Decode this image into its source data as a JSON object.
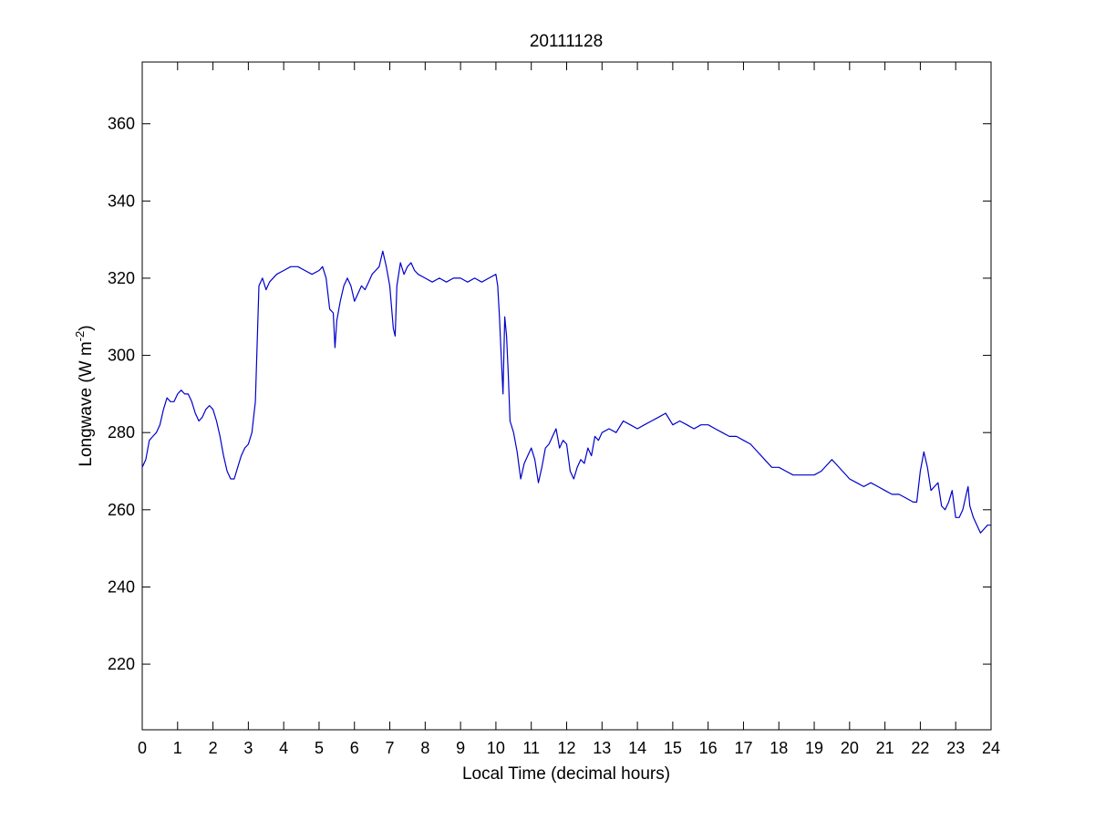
{
  "chart_data": {
    "type": "line",
    "title": "20111128",
    "xlabel": "Local Time (decimal hours)",
    "ylabel": {
      "text": "Longwave (W m",
      "superscript": "-2",
      "suffix": ")"
    },
    "xlim": [
      0,
      24
    ],
    "ylim": [
      203,
      376
    ],
    "xticks": [
      0,
      1,
      2,
      3,
      4,
      5,
      6,
      7,
      8,
      9,
      10,
      11,
      12,
      13,
      14,
      15,
      16,
      17,
      18,
      19,
      20,
      21,
      22,
      23,
      24
    ],
    "yticks": [
      220,
      240,
      260,
      280,
      300,
      320,
      340,
      360
    ],
    "grid": false,
    "line_color": "#0000cc",
    "series": [
      {
        "x": [
          0.0,
          0.1,
          0.2,
          0.3,
          0.4,
          0.5,
          0.6,
          0.7,
          0.8,
          0.9,
          1.0,
          1.1,
          1.2,
          1.3,
          1.4,
          1.5,
          1.6,
          1.7,
          1.8,
          1.9,
          2.0,
          2.1,
          2.2,
          2.3,
          2.4,
          2.5,
          2.6,
          2.7,
          2.8,
          2.9,
          3.0,
          3.1,
          3.2,
          3.3,
          3.4,
          3.5,
          3.6,
          3.8,
          4.0,
          4.2,
          4.4,
          4.6,
          4.8,
          5.0,
          5.1,
          5.2,
          5.3,
          5.4,
          5.45,
          5.5,
          5.6,
          5.7,
          5.8,
          5.9,
          6.0,
          6.1,
          6.2,
          6.3,
          6.4,
          6.5,
          6.6,
          6.7,
          6.8,
          6.9,
          7.0,
          7.1,
          7.15,
          7.2,
          7.3,
          7.4,
          7.5,
          7.6,
          7.7,
          7.8,
          8.0,
          8.2,
          8.4,
          8.6,
          8.8,
          9.0,
          9.2,
          9.4,
          9.6,
          9.8,
          10.0,
          10.05,
          10.1,
          10.15,
          10.2,
          10.25,
          10.3,
          10.35,
          10.4,
          10.5,
          10.6,
          10.7,
          10.8,
          10.9,
          11.0,
          11.1,
          11.2,
          11.3,
          11.4,
          11.5,
          11.6,
          11.7,
          11.8,
          11.9,
          12.0,
          12.1,
          12.2,
          12.3,
          12.4,
          12.5,
          12.6,
          12.7,
          12.8,
          12.9,
          13.0,
          13.2,
          13.4,
          13.6,
          13.8,
          14.0,
          14.2,
          14.4,
          14.6,
          14.8,
          15.0,
          15.2,
          15.4,
          15.6,
          15.8,
          16.0,
          16.2,
          16.4,
          16.6,
          16.8,
          17.0,
          17.2,
          17.4,
          17.6,
          17.8,
          18.0,
          18.2,
          18.4,
          18.6,
          18.8,
          19.0,
          19.2,
          19.4,
          19.5,
          19.6,
          19.8,
          20.0,
          20.2,
          20.4,
          20.6,
          20.8,
          21.0,
          21.2,
          21.4,
          21.6,
          21.8,
          21.9,
          22.0,
          22.1,
          22.2,
          22.3,
          22.4,
          22.5,
          22.6,
          22.7,
          22.8,
          22.9,
          23.0,
          23.1,
          23.2,
          23.3,
          23.35,
          23.4,
          23.5,
          23.6,
          23.7,
          23.8,
          23.9,
          24.0
        ],
        "y": [
          271,
          273,
          278,
          279,
          280,
          282,
          286,
          289,
          288,
          288,
          290,
          291,
          290,
          290,
          288,
          285,
          283,
          284,
          286,
          287,
          286,
          283,
          279,
          274,
          270,
          268,
          268,
          271,
          274,
          276,
          277,
          280,
          288,
          318,
          320,
          317,
          319,
          321,
          322,
          323,
          323,
          322,
          321,
          322,
          323,
          320,
          312,
          311,
          302,
          309,
          314,
          318,
          320,
          318,
          314,
          316,
          318,
          317,
          319,
          321,
          322,
          323,
          327,
          323,
          318,
          307,
          305,
          318,
          324,
          321,
          323,
          324,
          322,
          321,
          320,
          319,
          320,
          319,
          320,
          320,
          319,
          320,
          319,
          320,
          321,
          318,
          310,
          300,
          290,
          310,
          305,
          295,
          283,
          280,
          275,
          268,
          272,
          274,
          276,
          273,
          267,
          271,
          276,
          277,
          279,
          281,
          276,
          278,
          277,
          270,
          268,
          271,
          273,
          272,
          276,
          274,
          279,
          278,
          280,
          281,
          280,
          283,
          282,
          281,
          282,
          283,
          284,
          285,
          282,
          283,
          282,
          281,
          282,
          282,
          281,
          280,
          279,
          279,
          278,
          277,
          275,
          273,
          271,
          271,
          270,
          269,
          269,
          269,
          269,
          270,
          272,
          273,
          272,
          270,
          268,
          267,
          266,
          267,
          266,
          265,
          264,
          264,
          263,
          262,
          262,
          270,
          275,
          271,
          265,
          266,
          267,
          261,
          260,
          262,
          265,
          258,
          258,
          260,
          264,
          266,
          261,
          258,
          256,
          254,
          255,
          256,
          256
        ]
      }
    ]
  }
}
